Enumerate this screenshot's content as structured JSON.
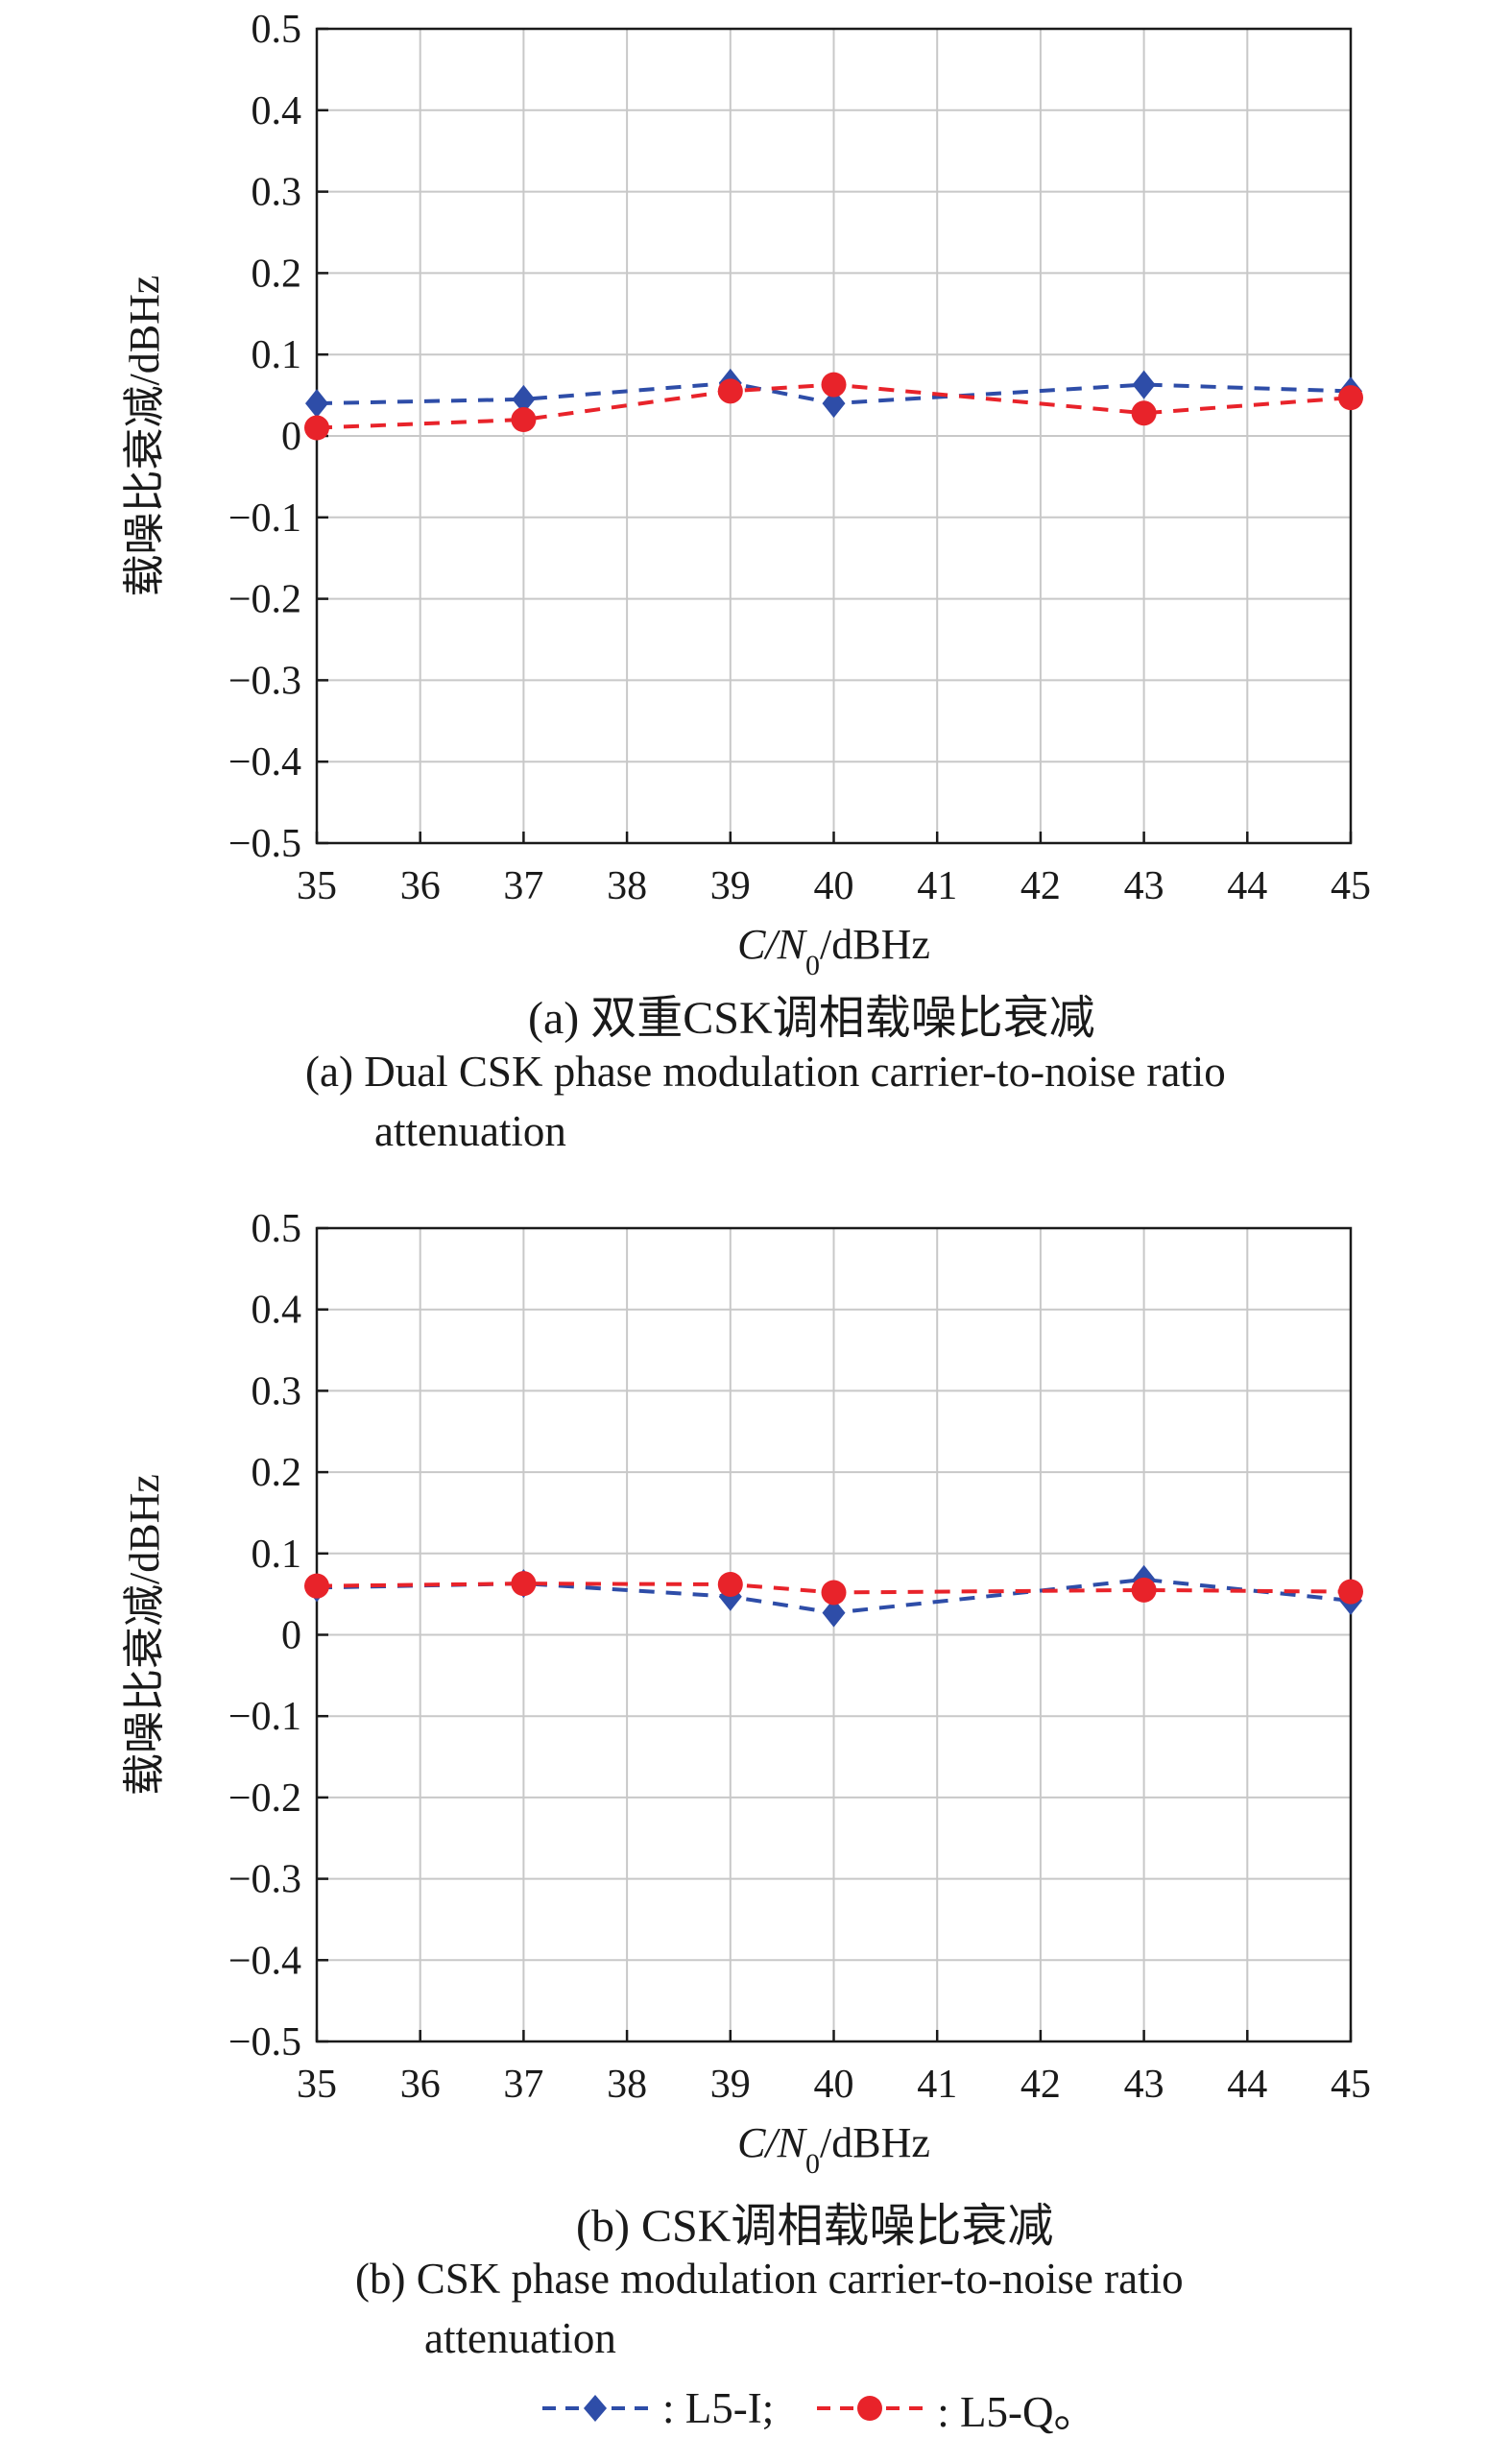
{
  "chart_data": [
    {
      "type": "line",
      "caption_cn": "(a) 双重CSK调相载噪比衰减",
      "caption_en_line1": "(a) Dual CSK phase modulation carrier-to-noise ratio",
      "caption_en_line2": "attenuation",
      "ylabel": "载噪比衰减/dBHz",
      "xlabel_italic": "C/N",
      "xlabel_sub": "0",
      "xlabel_rest": "/dBHz",
      "xlim": [
        35,
        45
      ],
      "ylim": [
        -0.5,
        0.5
      ],
      "xticks": [
        35,
        36,
        37,
        38,
        39,
        40,
        41,
        42,
        43,
        44,
        45
      ],
      "yticks": [
        -0.5,
        -0.4,
        -0.3,
        -0.2,
        -0.1,
        0,
        0.1,
        0.2,
        0.3,
        0.4,
        0.5
      ],
      "ytick_labels": [
        "−0.5",
        "−0.4",
        "−0.3",
        "−0.2",
        "−0.1",
        "0",
        "0.1",
        "0.2",
        "0.3",
        "0.4",
        "0.5"
      ],
      "grid": true,
      "series": [
        {
          "name": "L5-I",
          "color": "#2e4da8",
          "marker": "diamond",
          "x": [
            35,
            37,
            39,
            40,
            43,
            45
          ],
          "y": [
            0.04,
            0.045,
            0.065,
            0.04,
            0.063,
            0.055
          ]
        },
        {
          "name": "L5-Q",
          "color": "#e8232a",
          "marker": "circle",
          "x": [
            35,
            37,
            39,
            40,
            43,
            45
          ],
          "y": [
            0.01,
            0.02,
            0.055,
            0.063,
            0.028,
            0.047
          ]
        }
      ]
    },
    {
      "type": "line",
      "caption_cn": "(b) CSK调相载噪比衰减",
      "caption_en_line1": "(b) CSK phase modulation carrier-to-noise ratio",
      "caption_en_line2": "attenuation",
      "ylabel": "载噪比衰减/dBHz",
      "xlabel_italic": "C/N",
      "xlabel_sub": "0",
      "xlabel_rest": "/dBHz",
      "xlim": [
        35,
        45
      ],
      "ylim": [
        -0.5,
        0.5
      ],
      "xticks": [
        35,
        36,
        37,
        38,
        39,
        40,
        41,
        42,
        43,
        44,
        45
      ],
      "yticks": [
        -0.5,
        -0.4,
        -0.3,
        -0.2,
        -0.1,
        0,
        0.1,
        0.2,
        0.3,
        0.4,
        0.5
      ],
      "ytick_labels": [
        "−0.5",
        "−0.4",
        "−0.3",
        "−0.2",
        "−0.1",
        "0",
        "0.1",
        "0.2",
        "0.3",
        "0.4",
        "0.5"
      ],
      "grid": true,
      "series": [
        {
          "name": "L5-I",
          "color": "#2e4da8",
          "marker": "diamond",
          "x": [
            35,
            37,
            39,
            40,
            43,
            45
          ],
          "y": [
            0.058,
            0.063,
            0.047,
            0.027,
            0.068,
            0.042
          ]
        },
        {
          "name": "L5-Q",
          "color": "#e8232a",
          "marker": "circle",
          "x": [
            35,
            37,
            39,
            40,
            43,
            45
          ],
          "y": [
            0.06,
            0.063,
            0.062,
            0.052,
            0.055,
            0.053
          ]
        }
      ]
    }
  ],
  "legend": {
    "items": [
      {
        "label": ": L5-I;",
        "color": "#2e4da8",
        "marker": "diamond"
      },
      {
        "label": ": L5-Q。",
        "color": "#e8232a",
        "marker": "circle"
      }
    ]
  }
}
